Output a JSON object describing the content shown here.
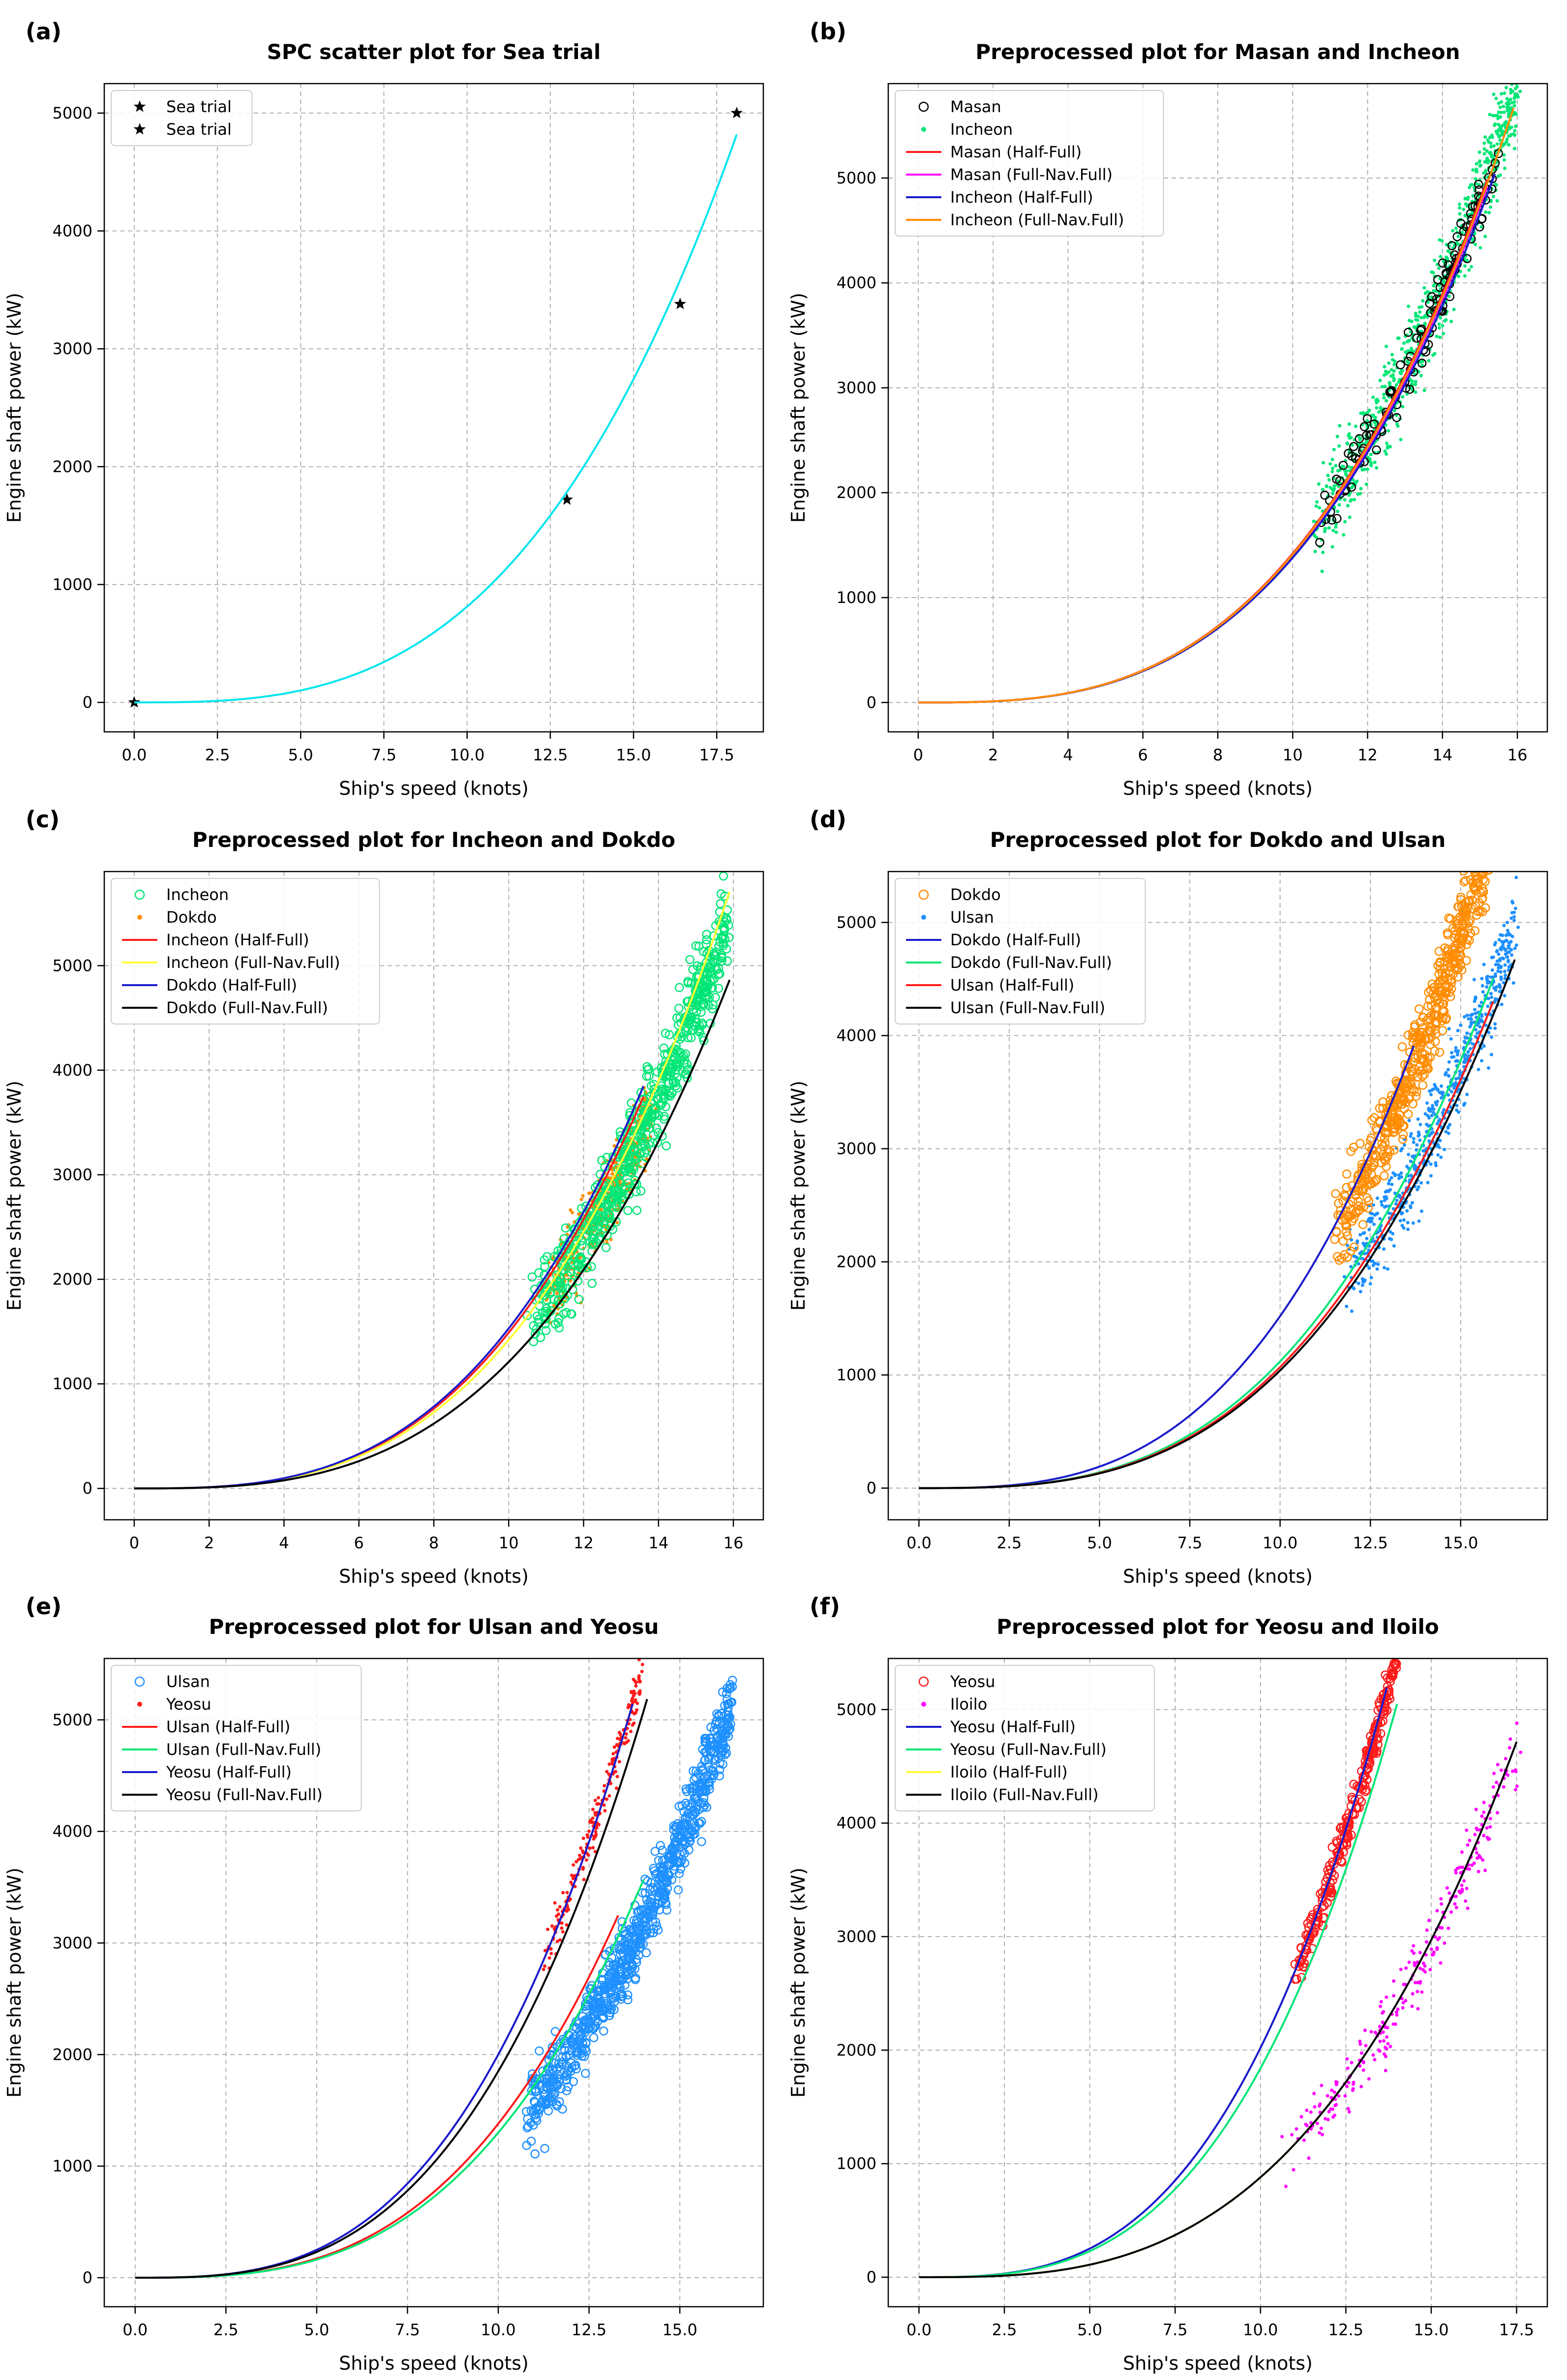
{
  "colors": {
    "cyan": "#00e5ee",
    "red": "#ff1a1a",
    "magenta": "#ff00ff",
    "blue": "#1a1acc",
    "orange": "#ff8c00",
    "green": "#00e676",
    "yellow": "#ffff33",
    "black": "#000000",
    "skyblue": "#1e90ff"
  },
  "chart_data": [
    {
      "type": "scatter",
      "panel_label": "(a)",
      "title": "SPC  scatter  plot  for  Sea  trial",
      "xlabel": "Ship's  speed  (knots)",
      "ylabel": "Engine  shaft  power  (kW)",
      "xlim": [
        -0.9,
        18.9
      ],
      "ylim": [
        -250,
        5250
      ],
      "xticks": [
        0,
        2.5,
        5,
        7.5,
        10,
        12.5,
        15,
        17.5
      ],
      "xtick_labels": [
        "0.0",
        "2.5",
        "5.0",
        "7.5",
        "10.0",
        "12.5",
        "15.0",
        "17.5"
      ],
      "yticks": [
        0,
        1000,
        2000,
        3000,
        4000,
        5000
      ],
      "ytick_labels": [
        "0",
        "1000",
        "2000",
        "3000",
        "4000",
        "5000"
      ],
      "legend": [
        "Sea trial",
        "Sea trial"
      ],
      "series": [
        {
          "name": "Sea trial",
          "kind": "points",
          "marker": "star",
          "color": "black",
          "x": [
            0,
            13.0,
            16.4,
            18.1
          ],
          "y": [
            0,
            1720,
            3380,
            5000
          ]
        },
        {
          "name": "Sea trial",
          "kind": "curve",
          "color": "cyan",
          "coef": 0.8125,
          "exp": 3,
          "x_range": [
            0,
            18.1
          ]
        }
      ]
    },
    {
      "type": "scatter",
      "panel_label": "(b)",
      "title": "Preprocessed  plot  for  Masan  and  Incheon",
      "xlabel": "Ship's  speed  (knots)",
      "ylabel": "Engine  shaft  power  (kW)",
      "xlim": [
        -0.8,
        16.8
      ],
      "ylim": [
        -280,
        5900
      ],
      "xticks": [
        0,
        2,
        4,
        6,
        8,
        10,
        12,
        14,
        16
      ],
      "xtick_labels": [
        "0",
        "2",
        "4",
        "6",
        "8",
        "10",
        "12",
        "14",
        "16"
      ],
      "yticks": [
        0,
        1000,
        2000,
        3000,
        4000,
        5000
      ],
      "ytick_labels": [
        "0",
        "1000",
        "2000",
        "3000",
        "4000",
        "5000"
      ],
      "legend": [
        "Masan",
        "Incheon",
        "Masan (Half-Full)",
        "Masan (Full-Nav.Full)",
        "Incheon (Half-Full)",
        "Incheon (Full-Nav.Full)"
      ],
      "series": [
        {
          "name": "Incheon",
          "kind": "cloud",
          "marker": "dot",
          "color": "green",
          "coef": 1.44,
          "exp": 3,
          "x_range": [
            10.6,
            16.0
          ],
          "spread": 420,
          "n": 900
        },
        {
          "name": "Masan",
          "kind": "cloud",
          "marker": "circle",
          "color": "black",
          "coef": 1.42,
          "exp": 3,
          "x_range": [
            10.6,
            15.4
          ],
          "spread": 260,
          "n": 130
        },
        {
          "name": "Masan (Half-Full)",
          "kind": "curve",
          "color": "red",
          "coef": 1.42,
          "exp": 3,
          "x_range": [
            0,
            15.2
          ]
        },
        {
          "name": "Masan (Full-Nav.Full)",
          "kind": "curve",
          "color": "magenta",
          "coef": 1.4,
          "exp": 3,
          "x_range": [
            0,
            15.2
          ]
        },
        {
          "name": "Incheon (Half-Full)",
          "kind": "curve",
          "color": "blue",
          "coef": 1.38,
          "exp": 3,
          "x_range": [
            0,
            15.4
          ]
        },
        {
          "name": "Incheon (Full-Nav.Full)",
          "kind": "curve",
          "color": "orange",
          "coef": 1.41,
          "exp": 3,
          "x_range": [
            0,
            15.9
          ]
        }
      ]
    },
    {
      "type": "scatter",
      "panel_label": "(c)",
      "title": "Preprocessed  plot  for  Incheon  and  Dokdo",
      "xlabel": "Ship's  speed  (knots)",
      "ylabel": "Engine  shaft  power  (kW)",
      "xlim": [
        -0.8,
        16.8
      ],
      "ylim": [
        -300,
        5900
      ],
      "xticks": [
        0,
        2,
        4,
        6,
        8,
        10,
        12,
        14,
        16
      ],
      "xtick_labels": [
        "0",
        "2",
        "4",
        "6",
        "8",
        "10",
        "12",
        "14",
        "16"
      ],
      "yticks": [
        0,
        1000,
        2000,
        3000,
        4000,
        5000
      ],
      "ytick_labels": [
        "0",
        "1000",
        "2000",
        "3000",
        "4000",
        "5000"
      ],
      "legend": [
        "Incheon",
        "Dokdo",
        "Incheon (Half-Full)",
        "Incheon (Full-Nav.Full)",
        "Dokdo (Half-Full)",
        "Dokdo (Full-Nav.Full)"
      ],
      "series": [
        {
          "name": "Dokdo",
          "kind": "cloud",
          "marker": "dot",
          "color": "orange",
          "coef": 1.38,
          "exp": 3,
          "x_range": [
            11.0,
            13.8
          ],
          "spread": 380,
          "n": 500
        },
        {
          "name": "Incheon",
          "kind": "cloud",
          "marker": "circle",
          "color": "green",
          "coef": 1.36,
          "exp": 3,
          "x_range": [
            10.6,
            15.8
          ],
          "spread": 420,
          "n": 650
        },
        {
          "name": "Incheon (Half-Full)",
          "kind": "curve",
          "color": "red",
          "coef": 1.49,
          "exp": 3,
          "x_range": [
            0,
            13.6
          ]
        },
        {
          "name": "Incheon (Full-Nav.Full)",
          "kind": "curve",
          "color": "yellow",
          "coef": 1.42,
          "exp": 3,
          "x_range": [
            0,
            15.9
          ]
        },
        {
          "name": "Dokdo (Half-Full)",
          "kind": "curve",
          "color": "blue",
          "coef": 1.53,
          "exp": 3,
          "x_range": [
            0,
            13.6
          ]
        },
        {
          "name": "Dokdo (Full-Nav.Full)",
          "kind": "curve",
          "color": "black",
          "coef": 1.21,
          "exp": 3,
          "x_range": [
            0,
            15.9
          ]
        }
      ]
    },
    {
      "type": "scatter",
      "panel_label": "(d)",
      "title": "Preprocessed  plot  for  Dokdo  and  Ulsan",
      "xlabel": "Ship's  speed  (knots)",
      "ylabel": "Engine  shaft  power  (kW)",
      "xlim": [
        -0.85,
        17.4
      ],
      "ylim": [
        -280,
        5450
      ],
      "xticks": [
        0,
        2.5,
        5,
        7.5,
        10,
        12.5,
        15
      ],
      "xtick_labels": [
        "0.0",
        "2.5",
        "5.0",
        "7.5",
        "10.0",
        "12.5",
        "15.0"
      ],
      "yticks": [
        0,
        1000,
        2000,
        3000,
        4000,
        5000
      ],
      "ytick_labels": [
        "0",
        "1000",
        "2000",
        "3000",
        "4000",
        "5000"
      ],
      "legend": [
        "Dokdo",
        "Ulsan",
        "Dokdo (Half-Full)",
        "Dokdo (Full-Nav.Full)",
        "Ulsan (Half-Full)",
        "Ulsan (Full-Nav.Full)"
      ],
      "series": [
        {
          "name": "Ulsan",
          "kind": "cloud",
          "marker": "dot",
          "color": "skyblue",
          "coef": 1.1,
          "exp": 3,
          "x_range": [
            11.8,
            16.5
          ],
          "spread": 380,
          "n": 650
        },
        {
          "name": "Dokdo",
          "kind": "cloud",
          "marker": "circle",
          "color": "orange",
          "coef": 1.45,
          "exp": 3,
          "x_range": [
            11.5,
            15.8
          ],
          "spread": 380,
          "n": 550
        },
        {
          "name": "Dokdo (Half-Full)",
          "kind": "curve",
          "color": "blue",
          "coef": 1.52,
          "exp": 3,
          "x_range": [
            0,
            13.7
          ]
        },
        {
          "name": "Dokdo (Full-Nav.Full)",
          "kind": "curve",
          "color": "green",
          "coef": 1.12,
          "exp": 3,
          "x_range": [
            0,
            15.9
          ]
        },
        {
          "name": "Ulsan (Half-Full)",
          "kind": "curve",
          "color": "red",
          "coef": 1.07,
          "exp": 3,
          "x_range": [
            0,
            15.9
          ]
        },
        {
          "name": "Ulsan (Full-Nav.Full)",
          "kind": "curve",
          "color": "black",
          "coef": 1.04,
          "exp": 3,
          "x_range": [
            0,
            16.5
          ]
        }
      ]
    },
    {
      "type": "scatter",
      "panel_label": "(e)",
      "title": "Preprocessed  plot  for  Ulsan  and  Yeosu",
      "xlabel": "Ship's  speed  (knots)",
      "ylabel": "Engine  shaft  power  (kW)",
      "xlim": [
        -0.85,
        17.3
      ],
      "ylim": [
        -260,
        5550
      ],
      "xticks": [
        0,
        2.5,
        5,
        7.5,
        10,
        12.5,
        15
      ],
      "xtick_labels": [
        "0.0",
        "2.5",
        "5.0",
        "7.5",
        "10.0",
        "12.5",
        "15.0"
      ],
      "yticks": [
        0,
        1000,
        2000,
        3000,
        4000,
        5000
      ],
      "ytick_labels": [
        "0",
        "1000",
        "2000",
        "3000",
        "4000",
        "5000"
      ],
      "legend": [
        "Ulsan",
        "Yeosu",
        "Ulsan (Half-Full)",
        "Ulsan (Full-Nav.Full)",
        "Yeosu (Half-Full)",
        "Yeosu (Full-Nav.Full)"
      ],
      "series": [
        {
          "name": "Ulsan",
          "kind": "cloud",
          "marker": "circle",
          "color": "skyblue",
          "coef": 1.16,
          "exp": 3,
          "x_range": [
            10.8,
            16.4
          ],
          "spread": 320,
          "n": 800
        },
        {
          "name": "Yeosu",
          "kind": "cloud",
          "marker": "dot",
          "color": "red",
          "coef": 2.0,
          "exp": 3,
          "x_range": [
            11.2,
            14.0
          ],
          "spread": 200,
          "n": 220
        },
        {
          "name": "Ulsan (Half-Full)",
          "kind": "curve",
          "color": "red",
          "coef": 1.38,
          "exp": 3,
          "x_range": [
            0,
            13.3
          ]
        },
        {
          "name": "Ulsan (Full-Nav.Full)",
          "kind": "curve",
          "color": "green",
          "coef": 1.3,
          "exp": 3,
          "x_range": [
            0,
            14.0
          ]
        },
        {
          "name": "Yeosu (Half-Full)",
          "kind": "curve",
          "color": "blue",
          "coef": 2.0,
          "exp": 3,
          "x_range": [
            0,
            13.7
          ]
        },
        {
          "name": "Yeosu (Full-Nav.Full)",
          "kind": "curve",
          "color": "black",
          "coef": 1.85,
          "exp": 3,
          "x_range": [
            0,
            14.1
          ]
        }
      ]
    },
    {
      "type": "scatter",
      "panel_label": "(f)",
      "title": "Preprocessed  plot  for  Yeosu  and  Iloilo",
      "xlabel": "Ship's  speed  (knots)",
      "ylabel": "Engine  shaft  power  (kW)",
      "xlim": [
        -0.9,
        18.4
      ],
      "ylim": [
        -260,
        5450
      ],
      "xticks": [
        0,
        2.5,
        5,
        7.5,
        10,
        12.5,
        15,
        17.5
      ],
      "xtick_labels": [
        "0.0",
        "2.5",
        "5.0",
        "7.5",
        "10.0",
        "12.5",
        "15.0",
        "17.5"
      ],
      "yticks": [
        0,
        1000,
        2000,
        3000,
        4000,
        5000
      ],
      "ytick_labels": [
        "0",
        "1000",
        "2000",
        "3000",
        "4000",
        "5000"
      ],
      "legend": [
        "Yeosu",
        "Iloilo",
        "Yeosu (Half-Full)",
        "Yeosu (Full-Nav.Full)",
        "Iloilo (Half-Full)",
        "Iloilo (Full-Nav.Full)"
      ],
      "series": [
        {
          "name": "Yeosu",
          "kind": "cloud",
          "marker": "circle",
          "color": "red",
          "coef": 2.0,
          "exp": 3,
          "x_range": [
            11.0,
            14.0
          ],
          "spread": 180,
          "n": 260
        },
        {
          "name": "Iloilo",
          "kind": "cloud",
          "marker": "dot",
          "color": "magenta",
          "coef": 0.87,
          "exp": 3,
          "x_range": [
            10.7,
            17.6
          ],
          "spread": 300,
          "n": 260
        },
        {
          "name": "Yeosu (Half-Full)",
          "kind": "curve",
          "color": "blue",
          "coef": 2.02,
          "exp": 3,
          "x_range": [
            0,
            13.7
          ]
        },
        {
          "name": "Yeosu (Full-Nav.Full)",
          "kind": "curve",
          "color": "green",
          "coef": 1.84,
          "exp": 3,
          "x_range": [
            0,
            14.0
          ]
        },
        {
          "name": "Iloilo (Half-Full)",
          "kind": "curve",
          "color": "yellow",
          "coef": 0.88,
          "exp": 3,
          "x_range": [
            0,
            12.0
          ]
        },
        {
          "name": "Iloilo (Full-Nav.Full)",
          "kind": "curve",
          "color": "black",
          "coef": 0.88,
          "exp": 3,
          "x_range": [
            0,
            17.5
          ]
        }
      ]
    }
  ]
}
